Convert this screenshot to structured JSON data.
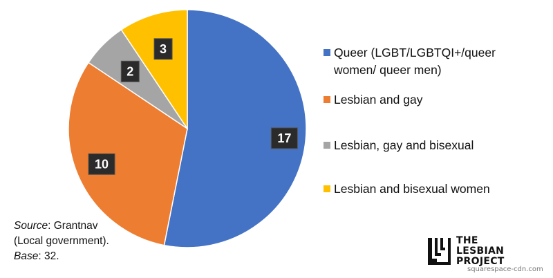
{
  "chart_data": {
    "type": "pie",
    "start": "12 o'clock",
    "direction": "clockwise",
    "slices": [
      {
        "label": "Queer (LGBT/LGBTQI+/queer women/ queer men)",
        "value": 17,
        "color": "#4472C4"
      },
      {
        "label": "Lesbian and gay",
        "value": 10,
        "color": "#ED7D31"
      },
      {
        "label": "Lesbian, gay and bisexual",
        "value": 2,
        "color": "#A5A5A5"
      },
      {
        "label": "Lesbian and bisexual women",
        "value": 3,
        "color": "#FFC000"
      }
    ],
    "data_labels": "dark boxes inside slices",
    "legend_position": "right"
  },
  "source_note": {
    "source_label": "Source",
    "source_text": ": Grantnav",
    "source_line2": "(Local government).",
    "base_label": "Base",
    "base_text": ": 32."
  },
  "logo": {
    "line1": "THE",
    "line2": "LESBIAN",
    "line3": "PROJECT"
  },
  "watermark": "squarespace-cdn.com"
}
